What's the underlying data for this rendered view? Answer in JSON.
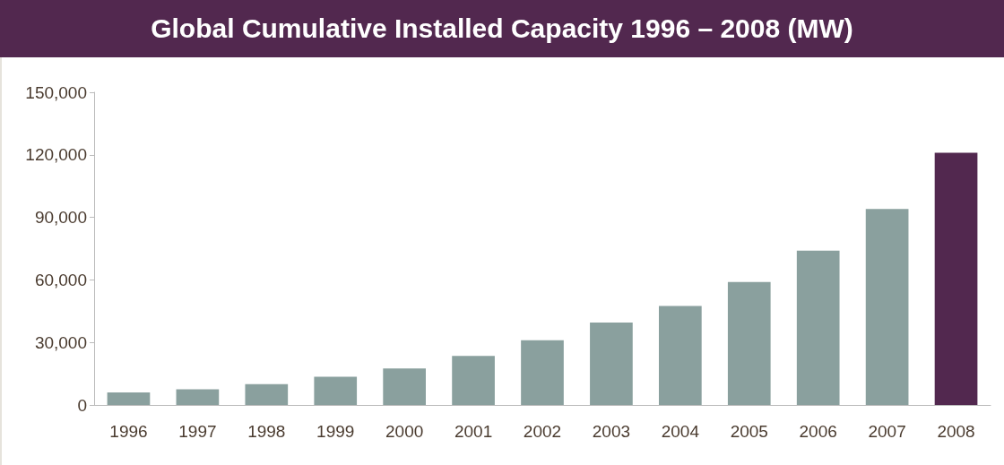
{
  "chart_data": {
    "type": "bar",
    "title": "Global Cumulative Installed Capacity 1996 – 2008 (MW)",
    "categories": [
      "1996",
      "1997",
      "1998",
      "1999",
      "2000",
      "2001",
      "2002",
      "2003",
      "2004",
      "2005",
      "2006",
      "2007",
      "2008"
    ],
    "values": [
      6000,
      7500,
      10000,
      13500,
      17500,
      23500,
      31000,
      39500,
      47500,
      59000,
      74000,
      94000,
      121000
    ],
    "colors": [
      "#8aa09e",
      "#8aa09e",
      "#8aa09e",
      "#8aa09e",
      "#8aa09e",
      "#8aa09e",
      "#8aa09e",
      "#8aa09e",
      "#8aa09e",
      "#8aa09e",
      "#8aa09e",
      "#8aa09e",
      "#52284f"
    ],
    "ylim": [
      0,
      150000
    ],
    "yticks": [
      0,
      {
        "value": 30000,
        "label": "30,000"
      },
      {
        "value": 60000,
        "label": "60,000"
      },
      {
        "value": 90000,
        "label": "90,000"
      },
      {
        "value": 120000,
        "label": "120,000"
      },
      {
        "value": 150000,
        "label": "150,000"
      }
    ],
    "grid": false
  }
}
